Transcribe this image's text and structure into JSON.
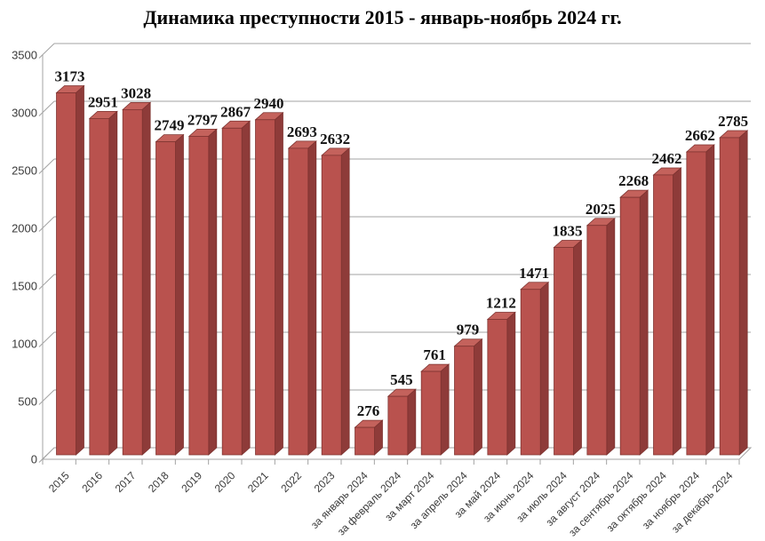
{
  "page": {
    "background": "#ffffff"
  },
  "chart_data": {
    "type": "bar",
    "effect": "3d",
    "title": "Динамика преступности 2015 - январь-ноябрь 2024 гг.",
    "categories": [
      "2015",
      "2016",
      "2017",
      "2018",
      "2019",
      "2020",
      "2021",
      "2022",
      "2023",
      "за январь 2024",
      "за февраль 2024",
      "за март 2024",
      "за апрель 2024",
      "за май 2024",
      "за июнь 2024",
      "за июль 2024",
      "за август 2024",
      "за сентябрь 2024",
      "за октябрь 2024",
      "за ноябрь 2024",
      "за декабрь 2024"
    ],
    "values": [
      3173,
      2951,
      3028,
      2749,
      2797,
      2867,
      2940,
      2693,
      2632,
      276,
      545,
      761,
      979,
      1212,
      1471,
      1835,
      2025,
      2268,
      2462,
      2662,
      2785
    ],
    "ylim": [
      0,
      3500
    ],
    "ytick_step": 500,
    "yticks": [
      0,
      500,
      1000,
      1500,
      2000,
      2500,
      3000,
      3500
    ],
    "grid": true,
    "legend": false,
    "data_labels": true,
    "xlabel": "",
    "ylabel": "",
    "colors": {
      "bar_front": "#b9524e",
      "bar_side": "#8e3b39",
      "bar_top": "#c4625c",
      "bar_outline": "#7c322f",
      "grid": "#a3a3a3",
      "axis_text": "#3a3a3a",
      "value_label_text": "#111111",
      "title_text": "#000000",
      "background": "#ffffff"
    }
  }
}
